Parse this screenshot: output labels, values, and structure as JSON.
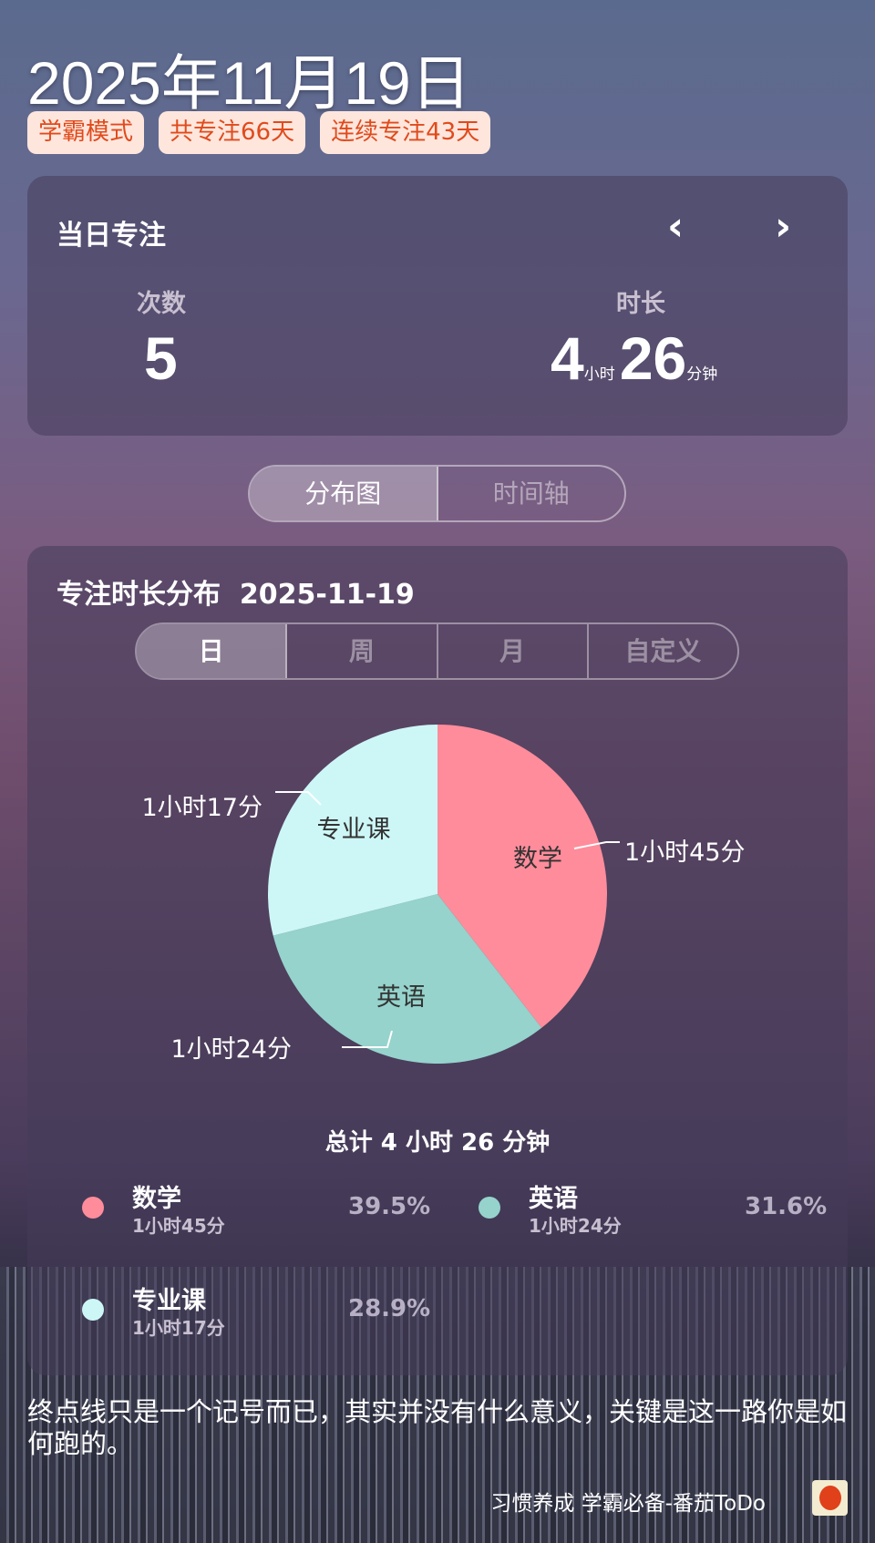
{
  "header": {
    "date": "2025年11月19日",
    "badges": [
      "学霸模式",
      "共专注66天",
      "连续专注43天"
    ]
  },
  "daily": {
    "title": "当日专注",
    "count_label": "次数",
    "count": "5",
    "duration_label": "时长",
    "hours": "4",
    "hours_unit": "小时",
    "minutes": "26",
    "minutes_unit": "分钟",
    "prev_icon": "chevron-left-icon",
    "next_icon": "chevron-right-icon"
  },
  "view_tabs": [
    "分布图",
    "时间轴"
  ],
  "distribution": {
    "title": "专注时长分布  2025-11-19",
    "period_tabs": [
      "日",
      "周",
      "月",
      "自定义"
    ],
    "total": "总计 4 小时 26 分钟"
  },
  "chart_data": {
    "type": "pie",
    "slices": [
      {
        "name": "数学",
        "label": "1小时45分",
        "minutes": 105,
        "percent": "39.5%",
        "color": "#ff8c9b"
      },
      {
        "name": "英语",
        "label": "1小时24分",
        "minutes": 84,
        "percent": "31.6%",
        "color": "#95d3cc"
      },
      {
        "name": "专业课",
        "label": "1小时17分",
        "minutes": 77,
        "percent": "28.9%",
        "color": "#cdf7f6"
      }
    ]
  },
  "quote": "终点线只是一个记号而已，其实并没有什么意义，关键是这一路你是如何跑的。",
  "footer": {
    "text": "习惯养成 学霸必备-番茄ToDo",
    "icon": "tomato-app-icon"
  }
}
